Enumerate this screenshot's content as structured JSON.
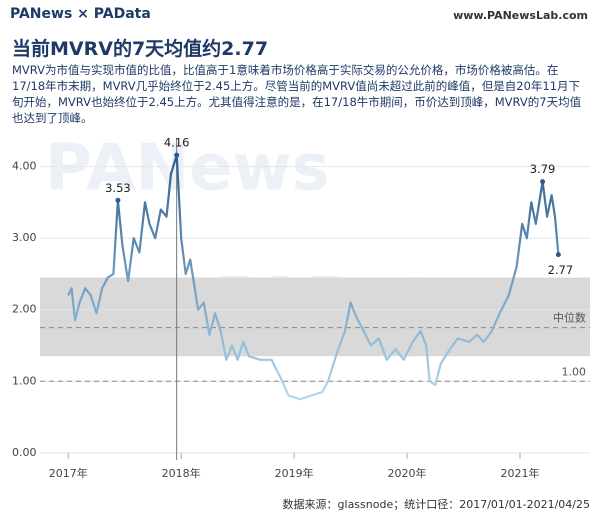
{
  "header": {
    "logo": "PANews × PAData",
    "url": "www.PANewsLab.com"
  },
  "chart_data": {
    "type": "line",
    "title": "当前MVRV的7天均值约2.77",
    "subtitle": "MVRV为市值与实现市值的比值，比值高于1意味着市场价格高于实际交易的公允价格，市场价格被高估。在17/18年市末期，MVRV几乎始终位于2.45上方。尽管当前的MVRV值尚未超过此前的峰值，但是自20年11月下旬开始，MVRV也始终位于2.45上方。尤其值得注意的是，在17/18牛市期间，币价达到顶峰，MVRV的7天均值也达到了顶峰。",
    "watermarks": [
      "PANews",
      "PAData"
    ],
    "x": [
      2017.0,
      2017.03,
      2017.06,
      2017.1,
      2017.15,
      2017.2,
      2017.25,
      2017.3,
      2017.35,
      2017.4,
      2017.44,
      2017.48,
      2017.53,
      2017.58,
      2017.63,
      2017.68,
      2017.72,
      2017.77,
      2017.82,
      2017.87,
      2017.91,
      2017.96,
      2018.0,
      2018.04,
      2018.08,
      2018.15,
      2018.2,
      2018.25,
      2018.3,
      2018.35,
      2018.4,
      2018.45,
      2018.5,
      2018.55,
      2018.6,
      2018.7,
      2018.8,
      2018.88,
      2018.95,
      2019.05,
      2019.15,
      2019.25,
      2019.3,
      2019.38,
      2019.45,
      2019.5,
      2019.55,
      2019.6,
      2019.68,
      2019.75,
      2019.82,
      2019.9,
      2019.97,
      2020.05,
      2020.12,
      2020.17,
      2020.2,
      2020.25,
      2020.3,
      2020.38,
      2020.45,
      2020.55,
      2020.62,
      2020.68,
      2020.75,
      2020.82,
      2020.9,
      2020.97,
      2021.02,
      2021.06,
      2021.1,
      2021.14,
      2021.2,
      2021.24,
      2021.28,
      2021.31,
      2021.34
    ],
    "values": [
      2.2,
      2.3,
      1.85,
      2.1,
      2.3,
      2.2,
      1.95,
      2.3,
      2.45,
      2.5,
      3.53,
      2.9,
      2.4,
      3.0,
      2.8,
      3.5,
      3.2,
      3.0,
      3.4,
      3.3,
      3.9,
      4.16,
      3.0,
      2.5,
      2.7,
      2.0,
      2.1,
      1.65,
      1.95,
      1.7,
      1.3,
      1.5,
      1.3,
      1.55,
      1.35,
      1.3,
      1.3,
      1.05,
      0.8,
      0.75,
      0.8,
      0.85,
      1.0,
      1.4,
      1.7,
      2.1,
      1.9,
      1.75,
      1.5,
      1.6,
      1.3,
      1.45,
      1.3,
      1.55,
      1.7,
      1.5,
      1.0,
      0.95,
      1.25,
      1.45,
      1.6,
      1.55,
      1.65,
      1.55,
      1.7,
      1.95,
      2.2,
      2.6,
      3.2,
      3.0,
      3.5,
      3.2,
      3.79,
      3.3,
      3.6,
      3.3,
      2.77
    ],
    "value_labels": [
      null,
      null,
      null,
      null,
      null,
      null,
      null,
      null,
      null,
      null,
      "3.53",
      null,
      null,
      null,
      null,
      null,
      null,
      null,
      null,
      null,
      null,
      "4.16",
      null,
      null,
      null,
      null,
      null,
      null,
      null,
      null,
      null,
      null,
      null,
      null,
      null,
      null,
      null,
      null,
      null,
      null,
      null,
      null,
      null,
      null,
      null,
      null,
      null,
      null,
      null,
      null,
      null,
      null,
      null,
      null,
      null,
      null,
      null,
      null,
      null,
      null,
      null,
      null,
      null,
      null,
      null,
      null,
      null,
      null,
      null,
      null,
      null,
      null,
      "3.79",
      null,
      null,
      null,
      "2.77"
    ],
    "gradient": [
      "#2b5b8c",
      "#b3dbf2"
    ],
    "xlim": [
      2016.75,
      2021.62
    ],
    "xticks": [
      {
        "value": 2017,
        "label": "2017年"
      },
      {
        "value": 2018,
        "label": "2018年"
      },
      {
        "value": 2019,
        "label": "2019年"
      },
      {
        "value": 2020,
        "label": "2020年"
      },
      {
        "value": 2021,
        "label": "2021年"
      }
    ],
    "ylim": [
      -0.1,
      4.4
    ],
    "yticks": [
      {
        "value": 0,
        "label": "0.00"
      },
      {
        "value": 1,
        "label": "1.00"
      },
      {
        "value": 2,
        "label": "2.00"
      },
      {
        "value": 3,
        "label": "3.00"
      },
      {
        "value": 4,
        "label": "4.00"
      }
    ],
    "grid": true,
    "band": [
      1.35,
      2.45
    ],
    "median": {
      "value": 1.75,
      "label": "中位数"
    },
    "reference": {
      "value": 1.0,
      "label": "1.00"
    },
    "marker_x": 2017.96,
    "source": "数据来源：glassnode；统计口径：2017/01/01-2021/04/25"
  }
}
